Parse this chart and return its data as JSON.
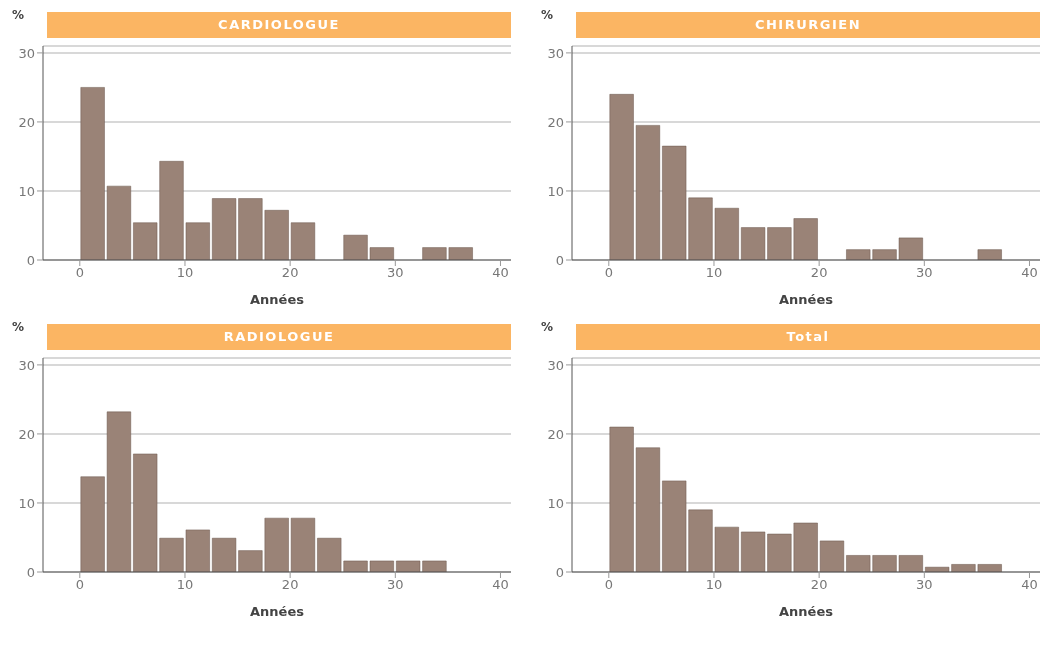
{
  "chart_data": [
    {
      "type": "histogram",
      "title": "CARDIOLOGUE",
      "xlabel": "Années",
      "ylabel": "%",
      "bins": [
        0,
        2.5,
        5,
        7.5,
        10,
        12.5,
        15,
        17.5,
        20,
        22.5,
        25,
        27.5,
        30,
        32.5,
        35,
        37.5
      ],
      "values": [
        25,
        10.7,
        5.4,
        14.3,
        5.4,
        8.9,
        8.9,
        7.2,
        5.4,
        0,
        3.6,
        1.8,
        0,
        1.8,
        1.8
      ],
      "color": "#9a8377",
      "xlim": [
        -3.5,
        41
      ],
      "xticks": [
        0,
        10,
        20,
        30,
        40
      ],
      "ylim": [
        0,
        31
      ],
      "yticks": [
        0,
        10,
        20,
        30
      ],
      "grid": "y",
      "legend": false
    },
    {
      "type": "histogram",
      "title": "CHIRURGIEN",
      "xlabel": "Années",
      "ylabel": "%",
      "bins": [
        0,
        2.5,
        5,
        7.5,
        10,
        12.5,
        15,
        17.5,
        20,
        22.5,
        25,
        27.5,
        30,
        32.5,
        35,
        37.5
      ],
      "values": [
        24,
        19.5,
        16.5,
        9,
        7.5,
        4.7,
        4.7,
        6,
        0,
        1.5,
        1.5,
        3.2,
        0,
        0,
        1.5
      ],
      "color": "#9a8377",
      "xlim": [
        -3.5,
        41
      ],
      "xticks": [
        0,
        10,
        20,
        30,
        40
      ],
      "ylim": [
        0,
        31
      ],
      "yticks": [
        0,
        10,
        20,
        30
      ],
      "grid": "y",
      "legend": false
    },
    {
      "type": "histogram",
      "title": "RADIOLOGUE",
      "xlabel": "Années",
      "ylabel": "%",
      "bins": [
        0,
        2.5,
        5,
        7.5,
        10,
        12.5,
        15,
        17.5,
        20,
        22.5,
        25,
        27.5,
        30,
        32.5,
        35,
        37.5
      ],
      "values": [
        13.8,
        23.2,
        17.1,
        4.9,
        6.1,
        4.9,
        3.1,
        7.8,
        7.8,
        4.9,
        1.6,
        1.6,
        1.6,
        1.6,
        0
      ],
      "color": "#9a8377",
      "xlim": [
        -3.5,
        41
      ],
      "xticks": [
        0,
        10,
        20,
        30,
        40
      ],
      "ylim": [
        0,
        31
      ],
      "yticks": [
        0,
        10,
        20,
        30
      ],
      "grid": "y",
      "legend": false
    },
    {
      "type": "histogram",
      "title": "Total",
      "xlabel": "Années",
      "ylabel": "%",
      "bins": [
        0,
        2.5,
        5,
        7.5,
        10,
        12.5,
        15,
        17.5,
        20,
        22.5,
        25,
        27.5,
        30,
        32.5,
        35,
        37.5
      ],
      "values": [
        21,
        18,
        13.2,
        9,
        6.5,
        5.8,
        5.5,
        7.1,
        4.5,
        2.4,
        2.4,
        2.4,
        0.7,
        1.1,
        1.1
      ],
      "color": "#9a8377",
      "xlim": [
        -3.5,
        41
      ],
      "xticks": [
        0,
        10,
        20,
        30,
        40
      ],
      "ylim": [
        0,
        31
      ],
      "yticks": [
        0,
        10,
        20,
        30
      ],
      "grid": "y",
      "legend": false
    }
  ]
}
